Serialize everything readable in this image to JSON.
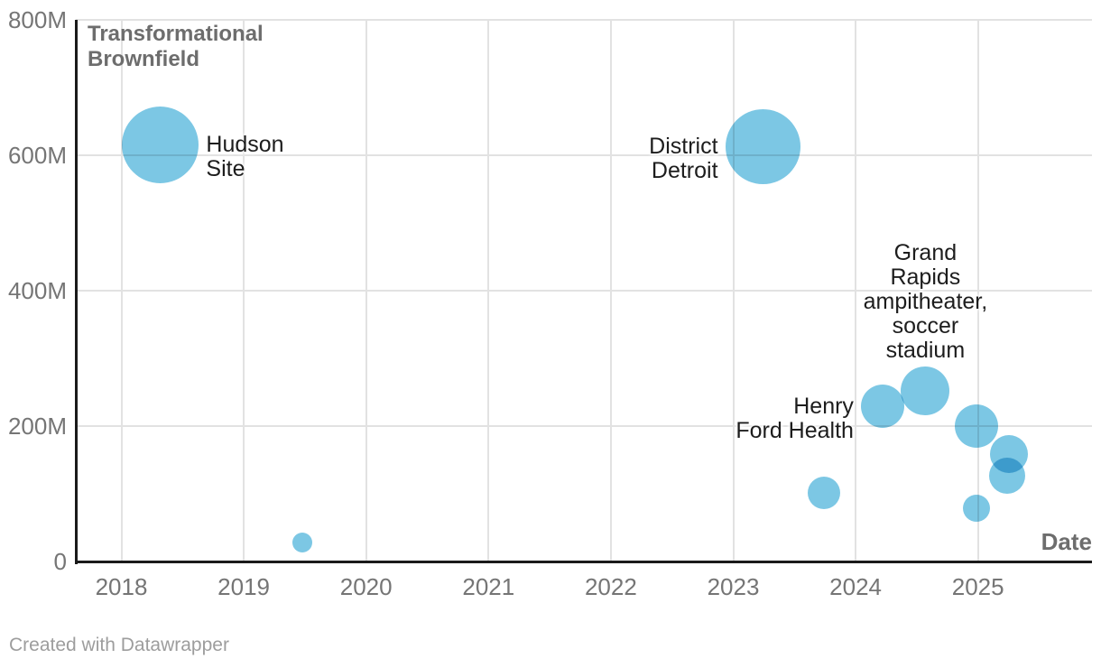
{
  "chart": {
    "annotation_top_left": "Transformational Brownfield",
    "x_axis_title": "Date",
    "y_tick_labels": [
      "800M",
      "600M",
      "400M",
      "200M",
      "0"
    ]
  },
  "chart_data": {
    "type": "bubble",
    "title": "Transformational Brownfield",
    "xlabel": "Date",
    "ylabel": "",
    "x_ticks": [
      2018,
      2019,
      2020,
      2021,
      2022,
      2023,
      2024,
      2025
    ],
    "x_range": [
      2017.63,
      2025.93
    ],
    "y_ticks": [
      {
        "value": 800,
        "label": "800M"
      },
      {
        "value": 600,
        "label": "600M"
      },
      {
        "value": 400,
        "label": "400M"
      },
      {
        "value": 200,
        "label": "200M"
      },
      {
        "value": 0,
        "label": "0"
      }
    ],
    "y_range_millions": [
      0,
      800
    ],
    "grid": true,
    "legend": "none",
    "bubble_color": "#7cc7e4",
    "size_encoding": "area proportional to value",
    "points": [
      {
        "label": "Hudson Site",
        "label_lines": [
          "Hudson",
          "Site"
        ],
        "label_position": "right",
        "date": 2018.32,
        "value_millions": 615,
        "radius_px": 42.5
      },
      {
        "label": "",
        "label_lines": [],
        "label_position": "none",
        "date": 2019.48,
        "value_millions": 28,
        "radius_px": 11
      },
      {
        "label": "District Detroit",
        "label_lines": [
          "District",
          "Detroit"
        ],
        "label_position": "left",
        "date": 2023.24,
        "value_millions": 613,
        "radius_px": 41.5
      },
      {
        "label": "",
        "label_lines": [],
        "label_position": "none",
        "date": 2023.74,
        "value_millions": 101,
        "radius_px": 18
      },
      {
        "label": "Henry Ford Health",
        "label_lines": [
          "Henry",
          "Ford Health"
        ],
        "label_position": "left",
        "date": 2024.22,
        "value_millions": 229,
        "radius_px": 24
      },
      {
        "label": "Grand Rapids ampitheater, soccer stadium",
        "label_lines": [
          "Grand",
          "Rapids",
          "ampitheater,",
          "soccer",
          "stadium"
        ],
        "label_position": "above",
        "date": 2024.57,
        "value_millions": 252,
        "radius_px": 27
      },
      {
        "label": "",
        "label_lines": [],
        "label_position": "none",
        "date": 2024.99,
        "value_millions": 200,
        "radius_px": 24
      },
      {
        "label": "",
        "label_lines": [],
        "label_position": "none",
        "date": 2024.99,
        "value_millions": 79,
        "radius_px": 15
      },
      {
        "label": "",
        "label_lines": [],
        "label_position": "none",
        "date": 2025.24,
        "value_millions": 127,
        "radius_px": 20
      },
      {
        "label": "",
        "label_lines": [],
        "label_position": "none",
        "date": 2025.25,
        "value_millions": 159,
        "radius_px": 21
      }
    ]
  },
  "footer": {
    "attribution": "Created with Datawrapper"
  }
}
